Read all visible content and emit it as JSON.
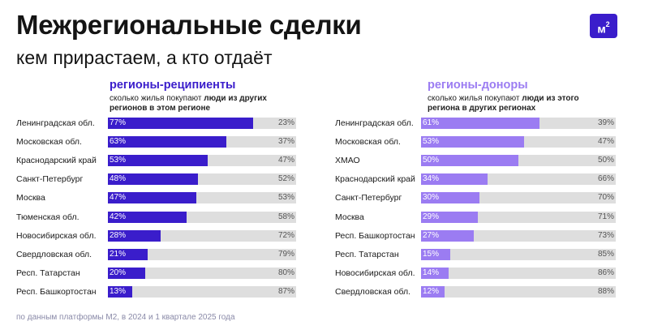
{
  "header": {
    "title": "Межрегиональные сделки",
    "subtitle": "кем прирастаем, а кто отдаёт",
    "logo_text": "м",
    "logo_sup": "2"
  },
  "panels": [
    {
      "title": "регионы-реципиенты",
      "note_line1_prefix": "сколько жилья покупают ",
      "note_line1_bold": "люди из других",
      "note_line2_bold": "регионов в этом регионе",
      "color": "#3a1dcb"
    },
    {
      "title": "регионы-доноры",
      "note_line1_prefix": "сколько жилья покупают ",
      "note_line1_bold": "люди из этого",
      "note_line2_bold": "региона в других регионах",
      "color": "#9b7cf2"
    }
  ],
  "footnote": "по данным платформы М2, в 2024 и 1 квартале 2025 года",
  "chart_data": [
    {
      "type": "bar",
      "title": "регионы-реципиенты",
      "categories": [
        "Ленинградская обл.",
        "Московская обл.",
        "Краснодарский край",
        "Санкт-Петербург",
        "Москва",
        "Тюменская обл.",
        "Новосибирская обл.",
        "Свердловская обл.",
        "Респ. Татарстан",
        "Респ. Башкортостан"
      ],
      "series": [
        {
          "values": [
            77,
            63,
            53,
            48,
            47,
            42,
            28,
            21,
            20,
            13
          ],
          "labels": [
            "77%",
            "63%",
            "53%",
            "48%",
            "47%",
            "42%",
            "28%",
            "21%",
            "20%",
            "13%"
          ]
        },
        {
          "values": [
            23,
            37,
            47,
            52,
            53,
            58,
            72,
            79,
            80,
            87
          ],
          "labels": [
            "23%",
            "37%",
            "47%",
            "52%",
            "53%",
            "58%",
            "72%",
            "79%",
            "80%",
            "87%"
          ]
        }
      ],
      "xlim": [
        0,
        100
      ],
      "stacked": true
    },
    {
      "type": "bar",
      "title": "регионы-доноры",
      "categories": [
        "Ленинградская обл.",
        "Московская обл.",
        "ХМАО",
        "Краснодарский край",
        "Санкт-Петербург",
        "Москва",
        "Респ. Башкортостан",
        "Респ. Татарстан",
        "Новосибирская обл.",
        "Свердловская обл."
      ],
      "series": [
        {
          "values": [
            61,
            53,
            50,
            34,
            30,
            29,
            27,
            15,
            14,
            12
          ],
          "labels": [
            "61%",
            "53%",
            "50%",
            "34%",
            "30%",
            "29%",
            "27%",
            "15%",
            "14%",
            "12%"
          ]
        },
        {
          "values": [
            39,
            47,
            50,
            66,
            70,
            71,
            73,
            85,
            86,
            88
          ],
          "labels": [
            "39%",
            "47%",
            "50%",
            "66%",
            "70%",
            "71%",
            "73%",
            "85%",
            "86%",
            "88%"
          ]
        }
      ],
      "xlim": [
        0,
        100
      ],
      "stacked": true
    }
  ]
}
